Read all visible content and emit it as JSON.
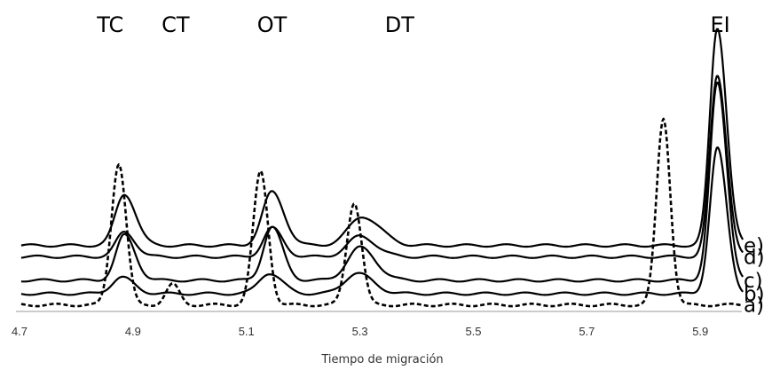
{
  "chart_data": {
    "type": "line",
    "title": "",
    "xlabel": "Tiempo de migración",
    "ylabel": "",
    "xlim": [
      4.7,
      6.0
    ],
    "ylim": [
      -0.1,
      14
    ],
    "x_ticks": [
      "4.7",
      "4.9",
      "5.1",
      "5.3",
      "5.5",
      "5.7",
      "5.9"
    ],
    "grid": false,
    "peak_labels": [
      {
        "text": "TC",
        "x": 4.86
      },
      {
        "text": "CT",
        "x": 4.975
      },
      {
        "text": "OT",
        "x": 5.145
      },
      {
        "text": "DT",
        "x": 5.37
      },
      {
        "text": "EI",
        "x": 5.935
      }
    ],
    "series": [
      {
        "name": "a)",
        "style": "dashed",
        "baseline": 0.0,
        "peaks": [
          {
            "x": 4.875,
            "height": 6.9,
            "width": 0.013
          },
          {
            "x": 4.97,
            "height": 1.0,
            "width": 0.012
          },
          {
            "x": 5.125,
            "height": 6.5,
            "width": 0.013
          },
          {
            "x": 5.29,
            "height": 5.0,
            "width": 0.013
          },
          {
            "x": 5.835,
            "height": 9.1,
            "width": 0.012
          }
        ]
      },
      {
        "name": "b)",
        "style": "solid",
        "baseline": 0.55,
        "peaks": [
          {
            "x": 4.88,
            "height": 0.8,
            "width": 0.017
          },
          {
            "x": 5.14,
            "height": 1.0,
            "width": 0.018
          },
          {
            "x": 5.295,
            "height": 1.0,
            "width": 0.022
          },
          {
            "x": 5.93,
            "height": 7.1,
            "width": 0.013
          }
        ]
      },
      {
        "name": "c)",
        "style": "solid",
        "baseline": 1.2,
        "peaks": [
          {
            "x": 4.885,
            "height": 2.2,
            "width": 0.015
          },
          {
            "x": 5.145,
            "height": 2.6,
            "width": 0.015
          },
          {
            "x": 5.3,
            "height": 1.6,
            "width": 0.022
          },
          {
            "x": 5.93,
            "height": 9.6,
            "width": 0.013
          }
        ]
      },
      {
        "name": "d)",
        "style": "solid",
        "baseline": 2.35,
        "peaks": [
          {
            "x": 4.885,
            "height": 1.2,
            "width": 0.015
          },
          {
            "x": 5.145,
            "height": 1.4,
            "width": 0.015
          },
          {
            "x": 5.3,
            "height": 1.0,
            "width": 0.022
          },
          {
            "x": 5.93,
            "height": 8.8,
            "width": 0.013
          }
        ]
      },
      {
        "name": "e)",
        "style": "solid",
        "baseline": 2.9,
        "peaks": [
          {
            "x": 4.885,
            "height": 2.5,
            "width": 0.016
          },
          {
            "x": 5.145,
            "height": 2.6,
            "width": 0.017
          },
          {
            "x": 5.305,
            "height": 1.4,
            "width": 0.025
          },
          {
            "x": 5.93,
            "height": 10.6,
            "width": 0.013
          }
        ]
      }
    ]
  }
}
